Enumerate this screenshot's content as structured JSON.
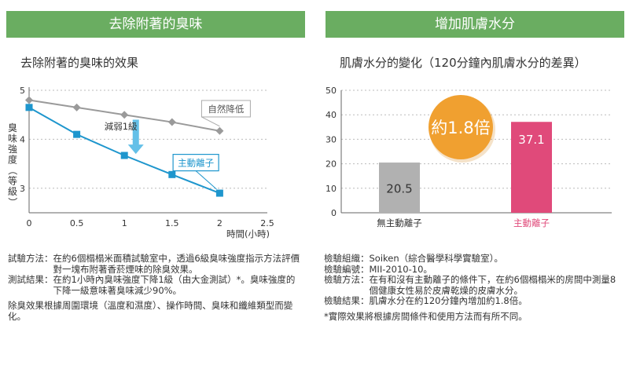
{
  "left": {
    "header": "去除附著的臭味",
    "subtitle": "去除附著的臭味的效果",
    "notes": [
      {
        "label": "試驗方法：",
        "text": "在約6個榻榻米面積試驗室中，透過6級臭味強度指示方法評價對一塊布附著香菸煙味的除臭效果。"
      },
      {
        "label": "測試結果：",
        "text": "在約1小時內臭味強度下降1級（由大金測試）*。臭味強度的下降一級意味著臭味減少90%。"
      }
    ],
    "paragraph": "除臭效果根據周圍環境（溫度和濕度）、操作時間、臭味和纖維類型而變化。"
  },
  "right": {
    "header": "增加肌膚水分",
    "subtitle": "肌膚水分的變化（120分鐘內肌膚水分的差異）",
    "notes": [
      {
        "label": "檢驗組織：",
        "text": "Soiken（綜合醫學科學實驗室）。"
      },
      {
        "label": "檢驗編號：",
        "text": "MII-2010-10。"
      },
      {
        "label": "檢驗方法：",
        "text": "在有和沒有主動離子的條件下，在約6個榻榻米的房間中測量8個健康女性易於皮膚乾燥的皮膚水分。"
      },
      {
        "label": "檢驗結果：",
        "text": "肌膚水分在約120分鐘內增加約1.8倍。"
      }
    ],
    "footnote": "*實際效果將根據房間條件和使用方法而有所不同。"
  },
  "chart_data": [
    {
      "type": "line",
      "title": "去除附著的臭味的效果",
      "xlabel": "時間(小時)",
      "ylabel": "臭味強度（等級）",
      "xlim": [
        0,
        2.5
      ],
      "ylim": [
        2.5,
        5
      ],
      "x_ticks": [
        "0",
        "0.5",
        "1",
        "1.5",
        "2",
        "2.5"
      ],
      "y_ticks": [
        "3",
        "4",
        "5"
      ],
      "grid": "horizontal-dotted",
      "series": [
        {
          "name": "自然降低",
          "color": "#9a9a9a",
          "marker": "diamond",
          "x": [
            0,
            0.5,
            1,
            1.5,
            2
          ],
          "y": [
            4.8,
            4.65,
            4.5,
            4.35,
            4.17
          ]
        },
        {
          "name": "主動離子",
          "color": "#1e96cd",
          "marker": "square",
          "x": [
            0,
            0.5,
            1,
            1.5,
            2
          ],
          "y": [
            4.65,
            4.1,
            3.67,
            3.28,
            2.9
          ]
        }
      ],
      "annotation": "減弱1級",
      "annotation_color": "#64c0e8"
    },
    {
      "type": "bar",
      "title": "肌膚水分的變化（120分鐘內肌膚水分的差異）",
      "categories": [
        "無主動離子",
        "主動離子"
      ],
      "values": [
        20.5,
        37.1
      ],
      "value_labels": [
        "20.5",
        "37.1"
      ],
      "colors": [
        "#b1b1b1",
        "#e04a7a"
      ],
      "category_label_colors": [
        "#333333",
        "#e04a7a"
      ],
      "ylim": [
        0,
        50
      ],
      "y_ticks": [
        "0",
        "10",
        "20",
        "30",
        "40",
        "50"
      ],
      "grid": "horizontal-dotted",
      "annotation": "約1.8倍",
      "annotation_color": "#f0a030"
    }
  ]
}
